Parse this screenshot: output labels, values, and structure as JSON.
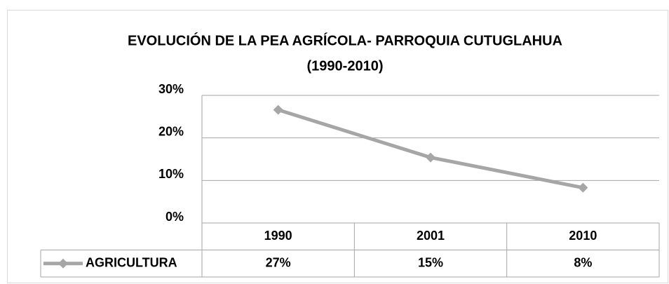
{
  "chart_data": {
    "type": "line",
    "title": [
      "EVOLUCIÓN DE LA PEA AGRÍCOLA- PARROQUIA CUTUGLAHUA",
      "(1990-2010)"
    ],
    "categories": [
      "1990",
      "2001",
      "2010"
    ],
    "series": [
      {
        "name": "AGRICULTURA",
        "color": "#a6a6a6",
        "values": [
          26.6,
          15.4,
          8.3
        ],
        "value_labels": [
          "27%",
          "15%",
          "8%"
        ]
      }
    ],
    "ylim": [
      0,
      30
    ],
    "yticks": [
      {
        "value": 0,
        "label": "0%"
      },
      {
        "value": 10,
        "label": "10%"
      },
      {
        "value": 20,
        "label": "20%"
      },
      {
        "value": 30,
        "label": "30%"
      }
    ],
    "grid": true
  }
}
